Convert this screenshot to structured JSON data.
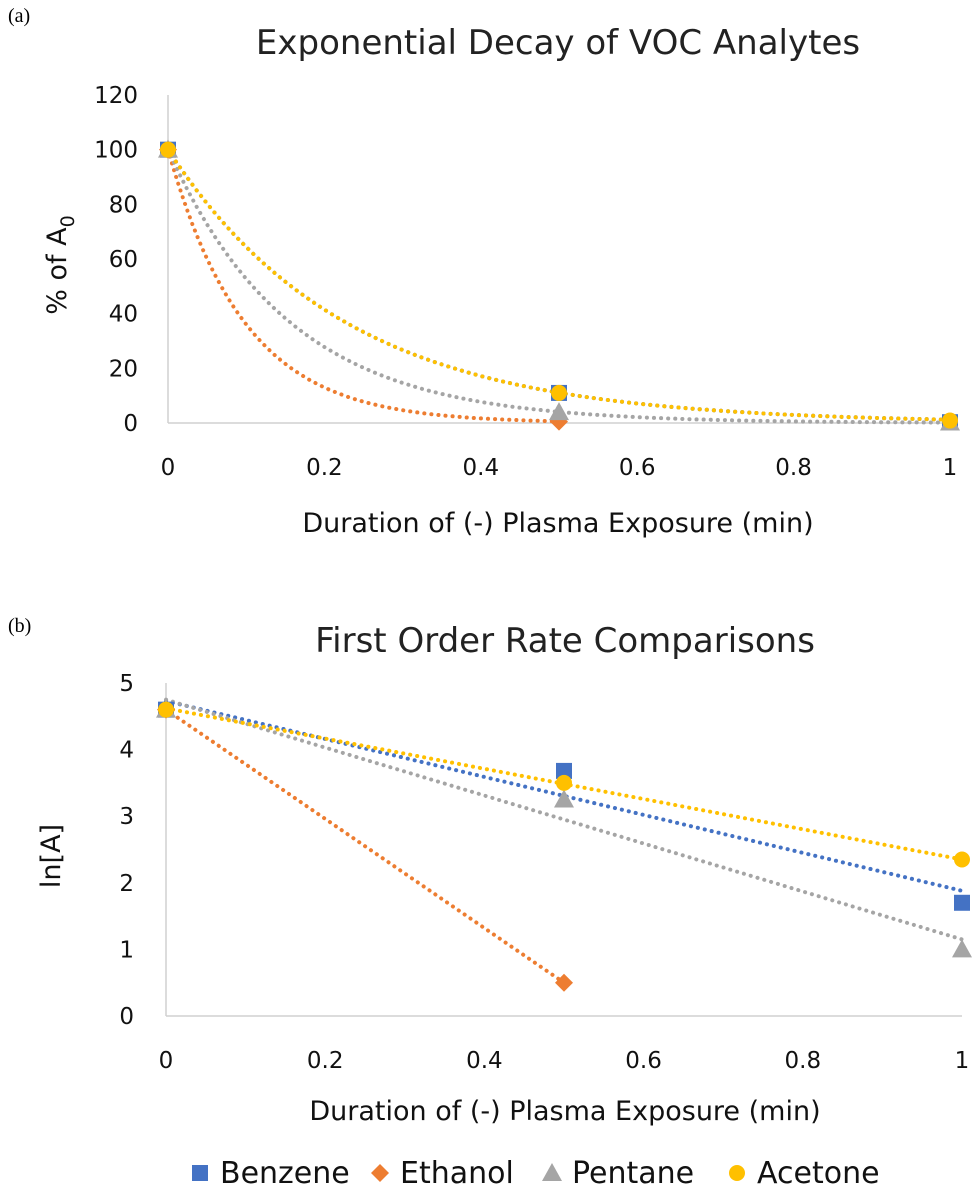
{
  "chart_data": [
    {
      "panel_label": "(a)",
      "type": "scatter",
      "title": "Exponential Decay of VOC Analytes",
      "xlabel": "Duration of (-) Plasma Exposure (min)",
      "ylabel_main": "% of A",
      "ylabel_sub": "0",
      "xlim": [
        0,
        1
      ],
      "ylim": [
        0,
        120
      ],
      "xticks": [
        0,
        0.2,
        0.4,
        0.6,
        0.8,
        1
      ],
      "yticks": [
        0,
        20,
        40,
        60,
        80,
        100,
        120
      ],
      "xtick_labels": [
        "0",
        "0.2",
        "0.4",
        "0.6",
        "0.8",
        "1"
      ],
      "ytick_labels": [
        "0",
        "20",
        "40",
        "60",
        "80",
        "100",
        "120"
      ],
      "trendline": "exponential",
      "grid": false,
      "series": [
        {
          "name": "Benzene",
          "x": [
            0,
            0.5,
            1
          ],
          "y": [
            100,
            11,
            0.3
          ],
          "trend_rate": 4.4
        },
        {
          "name": "Ethanol",
          "x": [
            0,
            0.5
          ],
          "y": [
            100,
            0.5
          ],
          "trend_rate": 10.2
        },
        {
          "name": "Pentane",
          "x": [
            0,
            0.5,
            1
          ],
          "y": [
            100,
            4,
            0.2
          ],
          "trend_rate": 6.4
        },
        {
          "name": "Acetone",
          "x": [
            0,
            0.5,
            1
          ],
          "y": [
            100,
            11,
            0.9
          ],
          "trend_rate": 4.4
        }
      ]
    },
    {
      "panel_label": "(b)",
      "type": "scatter",
      "title": "First Order Rate Comparisons",
      "xlabel": "Duration of (-) Plasma Exposure (min)",
      "ylabel": "ln[A]",
      "xlim": [
        0,
        1
      ],
      "ylim": [
        0,
        5
      ],
      "xticks": [
        0,
        0.2,
        0.4,
        0.6,
        0.8,
        1
      ],
      "yticks": [
        0,
        1,
        2,
        3,
        4,
        5
      ],
      "xtick_labels": [
        "0",
        "0.2",
        "0.4",
        "0.6",
        "0.8",
        "1"
      ],
      "ytick_labels": [
        "0",
        "1",
        "2",
        "3",
        "4",
        "5"
      ],
      "trendline": "linear",
      "grid": false,
      "series": [
        {
          "name": "Benzene",
          "x": [
            0,
            0.5,
            1
          ],
          "y": [
            4.6,
            3.68,
            1.7
          ],
          "trend": [
            4.73,
            1.88
          ]
        },
        {
          "name": "Ethanol",
          "x": [
            0,
            0.5
          ],
          "y": [
            4.6,
            0.5
          ],
          "trend": [
            4.6,
            0.5
          ]
        },
        {
          "name": "Pentane",
          "x": [
            0,
            0.5,
            1
          ],
          "y": [
            4.6,
            3.25,
            1.0
          ],
          "trend": [
            4.75,
            1.15
          ]
        },
        {
          "name": "Acetone",
          "x": [
            0,
            0.5,
            1
          ],
          "y": [
            4.6,
            3.5,
            2.35
          ],
          "trend": [
            4.62,
            2.35
          ]
        }
      ]
    }
  ],
  "legend": {
    "position": "bottom",
    "items": [
      {
        "name": "Benzene",
        "marker": "square",
        "color": "#4472C4"
      },
      {
        "name": "Ethanol",
        "marker": "diamond",
        "color": "#ED7D31"
      },
      {
        "name": "Pentane",
        "marker": "triangle",
        "color": "#A5A5A5"
      },
      {
        "name": "Acetone",
        "marker": "circle",
        "color": "#FFC000"
      }
    ]
  }
}
